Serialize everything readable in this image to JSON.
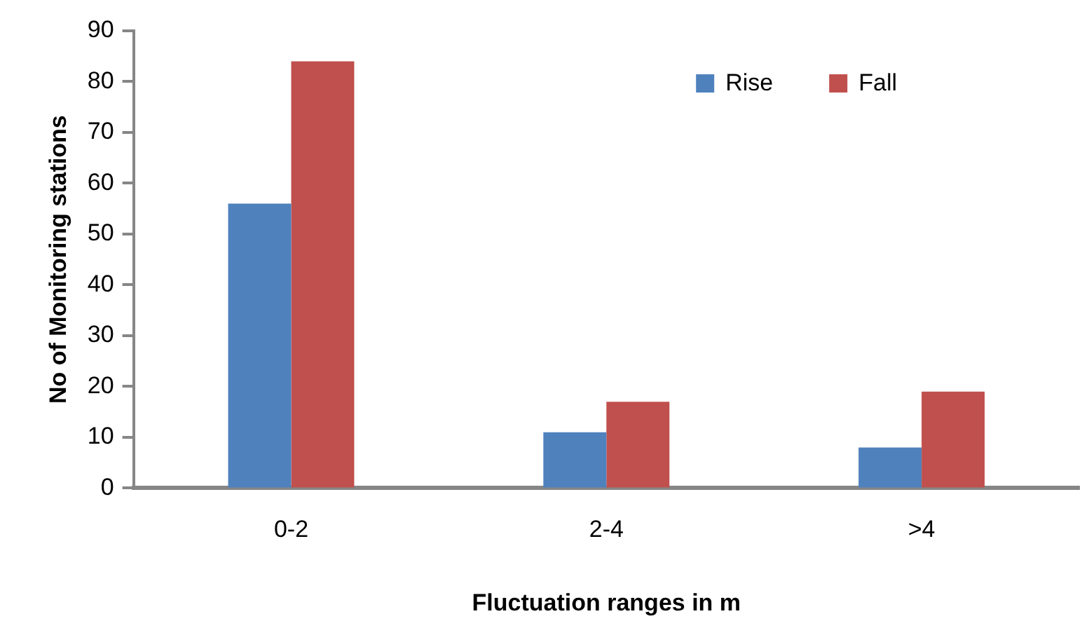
{
  "chart_data": {
    "type": "bar",
    "xlabel": "Fluctuation ranges in m",
    "ylabel": "No of Monitoring stations",
    "categories": [
      "0-2",
      "2-4",
      ">4"
    ],
    "series": [
      {
        "name": "Rise",
        "color": "#4f81bd",
        "values": [
          56,
          11,
          8
        ]
      },
      {
        "name": "Fall",
        "color": "#c0504d",
        "values": [
          84,
          17,
          19
        ]
      }
    ],
    "ylim": [
      0,
      90
    ],
    "yticks": [
      0,
      10,
      20,
      30,
      40,
      50,
      60,
      70,
      80,
      90
    ],
    "grid": false,
    "legend": "top right"
  }
}
